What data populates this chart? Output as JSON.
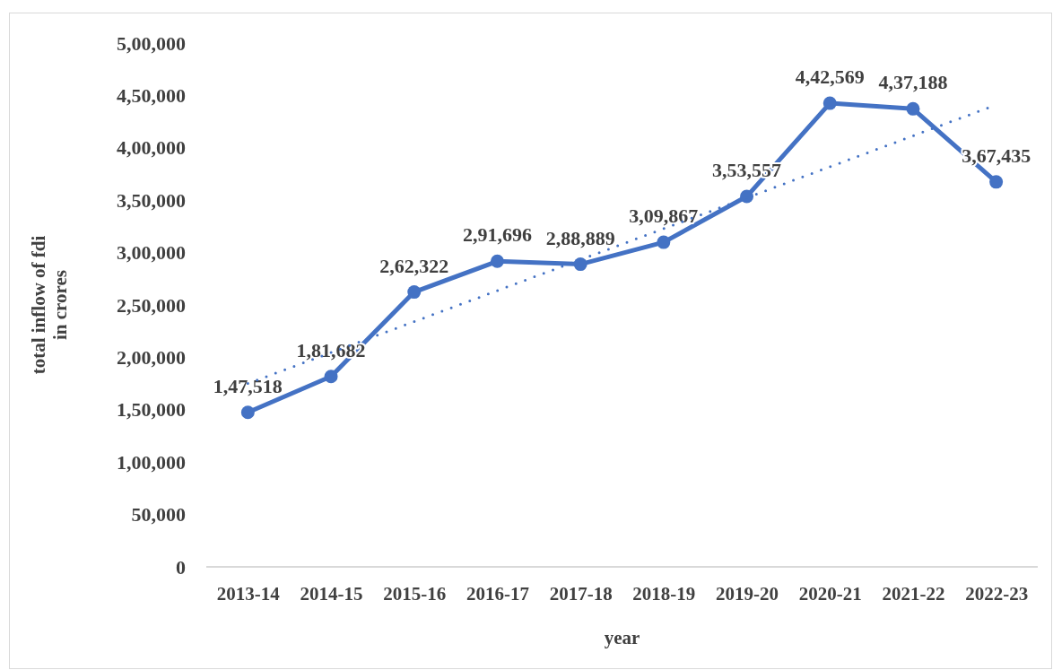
{
  "chart_data": {
    "type": "line",
    "xlabel": "year",
    "ylabel": "total inflow of fdi in crores",
    "categories": [
      "2013-14",
      "2014-15",
      "2015-16",
      "2016-17",
      "2017-18",
      "2018-19",
      "2019-20",
      "2020-21",
      "2021-22",
      "2022-23"
    ],
    "series": [
      {
        "type": "line",
        "color": "#4472c4",
        "marker": "circle",
        "line_style": "solid",
        "values": [
          147518,
          181682,
          262322,
          291696,
          288889,
          309867,
          353557,
          442569,
          437188,
          367435
        ],
        "value_labels": [
          "1,47,518",
          "1,81,682",
          "2,62,322",
          "2,91,696",
          "2,88,889",
          "3,09,867",
          "3,53,557",
          "4,42,569",
          "4,37,188",
          "3,67,435"
        ]
      },
      {
        "type": "line",
        "color": "#4472c4",
        "marker": "none",
        "line_style": "dotted",
        "x": [
          "2013-14",
          "2022-23"
        ],
        "values": [
          175000,
          441000
        ]
      }
    ],
    "ylim": [
      0,
      500000
    ],
    "yticks": [
      {
        "value": 0,
        "label": "0"
      },
      {
        "value": 50000,
        "label": "50,000"
      },
      {
        "value": 100000,
        "label": "1,00,000"
      },
      {
        "value": 150000,
        "label": "1,50,000"
      },
      {
        "value": 200000,
        "label": "2,00,000"
      },
      {
        "value": 250000,
        "label": "2,50,000"
      },
      {
        "value": 300000,
        "label": "3,00,000"
      },
      {
        "value": 350000,
        "label": "3,50,000"
      },
      {
        "value": 400000,
        "label": "4,00,000"
      },
      {
        "value": 450000,
        "label": "4,50,000"
      },
      {
        "value": 500000,
        "label": "5,00,000"
      }
    ],
    "grid": false
  }
}
